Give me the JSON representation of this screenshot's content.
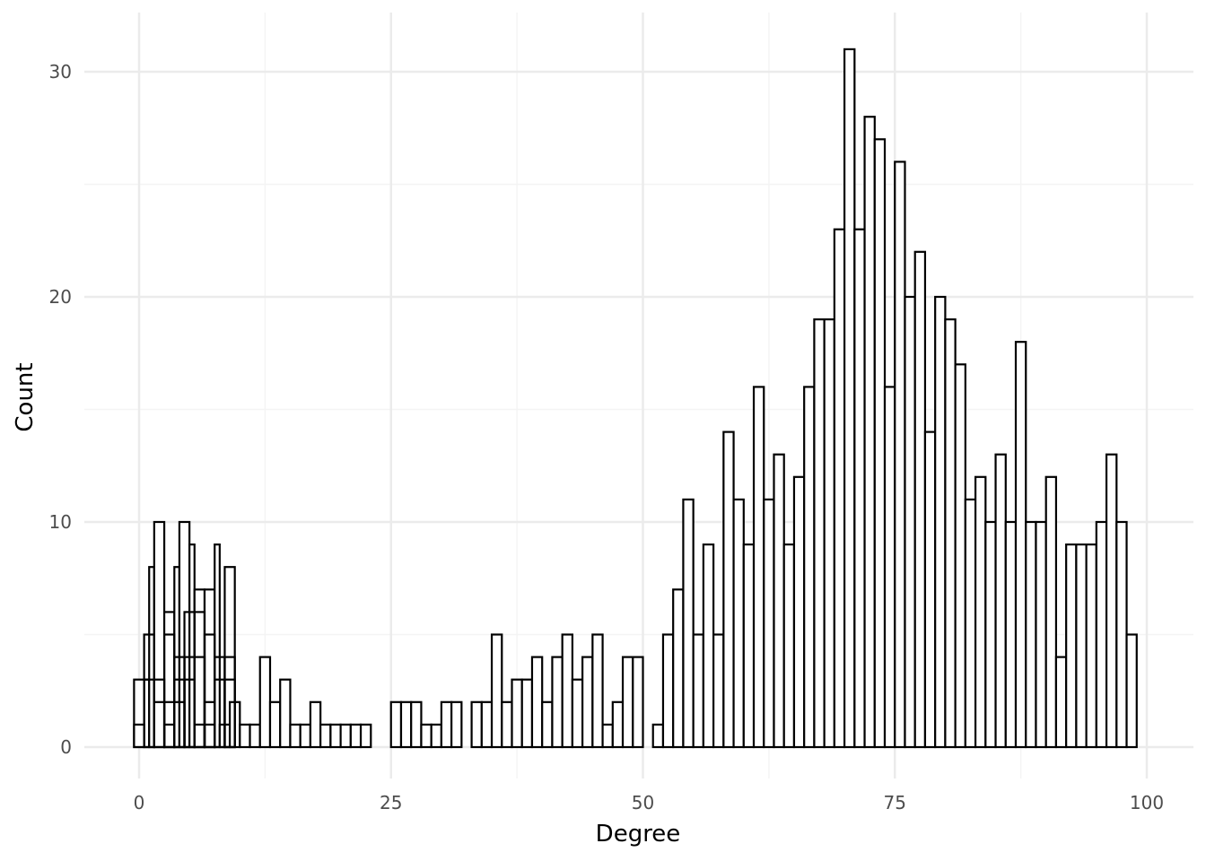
{
  "chart_data": {
    "type": "bar",
    "subtype": "histogram",
    "title": "",
    "xlabel": "Degree",
    "ylabel": "Count",
    "xlim": [
      -5,
      103
    ],
    "ylim": [
      -1.5,
      32.5
    ],
    "x_ticks": [
      0,
      25,
      50,
      75,
      100
    ],
    "y_ticks": [
      0,
      10,
      20,
      30
    ],
    "x_tick_labels": [
      "0",
      "25",
      "50",
      "75",
      "100"
    ],
    "y_tick_labels": [
      "0",
      "10",
      "20",
      "30"
    ],
    "grid": true,
    "legend": "none",
    "bar_fill": "#ffffff",
    "bar_stroke": "#000000",
    "grid_major_color": "#ebebeb",
    "grid_minor_color": "#f4f4f4",
    "bins_left": [
      -0.5,
      1,
      1.5,
      2.5,
      3.5,
      4,
      5,
      5.5,
      6.5,
      7.5,
      8,
      9,
      10,
      11,
      12,
      13,
      14,
      15,
      16,
      17,
      18,
      19,
      20,
      21,
      22,
      25,
      26,
      27,
      28,
      29,
      30,
      31,
      33,
      34,
      35,
      36,
      37,
      38,
      39,
      40,
      41,
      42,
      43,
      44,
      45,
      46,
      47,
      48,
      49,
      51,
      52,
      53,
      54,
      55,
      56,
      57,
      58,
      59,
      60,
      61,
      62,
      63,
      64,
      65,
      66,
      67,
      68,
      69,
      70,
      71,
      72,
      73,
      74,
      75,
      76,
      77,
      78,
      79,
      80,
      81,
      82,
      83,
      84,
      85,
      86,
      87,
      88,
      89,
      90,
      91,
      92,
      93,
      94,
      95,
      96,
      97,
      98,
      99
    ],
    "bins_right": [
      1,
      1.5,
      2.5,
      3.5,
      4,
      5,
      5.5,
      6.5,
      7.5,
      8,
      9,
      10,
      11,
      12,
      13,
      14,
      15,
      16,
      17,
      18,
      19,
      20,
      21,
      22,
      23,
      26,
      27,
      28,
      29,
      30,
      31,
      32,
      34,
      35,
      36,
      37,
      38,
      39,
      40,
      41,
      42,
      43,
      44,
      45,
      46,
      47,
      48,
      49,
      50,
      52,
      53,
      54,
      55,
      56,
      57,
      58,
      59,
      60,
      61,
      62,
      63,
      64,
      65,
      66,
      67,
      68,
      69,
      70,
      71,
      72,
      73,
      74,
      75,
      76,
      77,
      78,
      79,
      80,
      81,
      82,
      83,
      84,
      85,
      86,
      87,
      88,
      89,
      90,
      91,
      92,
      93,
      94,
      95,
      96,
      97,
      98,
      99,
      100
    ],
    "values": [
      3,
      8,
      10,
      6,
      8,
      10,
      9,
      7,
      7,
      9,
      1,
      2,
      1,
      1,
      4,
      2,
      3,
      1,
      1,
      2,
      1,
      1,
      1,
      1,
      1,
      2,
      2,
      2,
      1,
      1,
      2,
      2,
      2,
      2,
      5,
      2,
      3,
      3,
      4,
      2,
      4,
      5,
      3,
      4,
      5,
      1,
      2,
      4,
      4,
      1,
      5,
      7,
      11,
      5,
      9,
      5,
      14,
      11,
      9,
      16,
      11,
      13,
      9,
      12,
      16,
      19,
      19,
      23,
      31,
      23,
      28,
      27,
      16,
      26,
      20,
      22,
      14,
      20,
      19,
      17,
      11,
      12,
      10,
      13,
      10,
      18,
      10,
      10,
      12,
      4,
      9,
      9,
      9,
      10,
      13,
      10,
      5
    ],
    "overlay_bars": [
      {
        "left": -0.5,
        "right": 0.5,
        "value": 1
      },
      {
        "left": 0.5,
        "right": 1.5,
        "value": 3
      },
      {
        "left": 0.5,
        "right": 1.5,
        "value": 5
      },
      {
        "left": 1.5,
        "right": 2.5,
        "value": 2
      },
      {
        "left": 1.5,
        "right": 2.5,
        "value": 3
      },
      {
        "left": 2.5,
        "right": 3.5,
        "value": 1
      },
      {
        "left": 2.5,
        "right": 3.5,
        "value": 2
      },
      {
        "left": 2.5,
        "right": 3.5,
        "value": 5
      },
      {
        "left": 3.5,
        "right": 4.5,
        "value": 2
      },
      {
        "left": 3.5,
        "right": 4.5,
        "value": 3
      },
      {
        "left": 3.5,
        "right": 4.5,
        "value": 4
      },
      {
        "left": 4.5,
        "right": 5.5,
        "value": 3
      },
      {
        "left": 4.5,
        "right": 5.5,
        "value": 4
      },
      {
        "left": 4.5,
        "right": 5.5,
        "value": 6
      },
      {
        "left": 5.5,
        "right": 6.5,
        "value": 1
      },
      {
        "left": 5.5,
        "right": 6.5,
        "value": 4
      },
      {
        "left": 5.5,
        "right": 6.5,
        "value": 6
      },
      {
        "left": 6.5,
        "right": 7.5,
        "value": 1
      },
      {
        "left": 6.5,
        "right": 7.5,
        "value": 2
      },
      {
        "left": 6.5,
        "right": 7.5,
        "value": 5
      },
      {
        "left": 7.5,
        "right": 8.5,
        "value": 3
      },
      {
        "left": 7.5,
        "right": 8.5,
        "value": 4
      },
      {
        "left": 8.5,
        "right": 9.5,
        "value": 3
      },
      {
        "left": 8.5,
        "right": 9.5,
        "value": 4
      },
      {
        "left": 8.5,
        "right": 9.5,
        "value": 8
      }
    ]
  }
}
